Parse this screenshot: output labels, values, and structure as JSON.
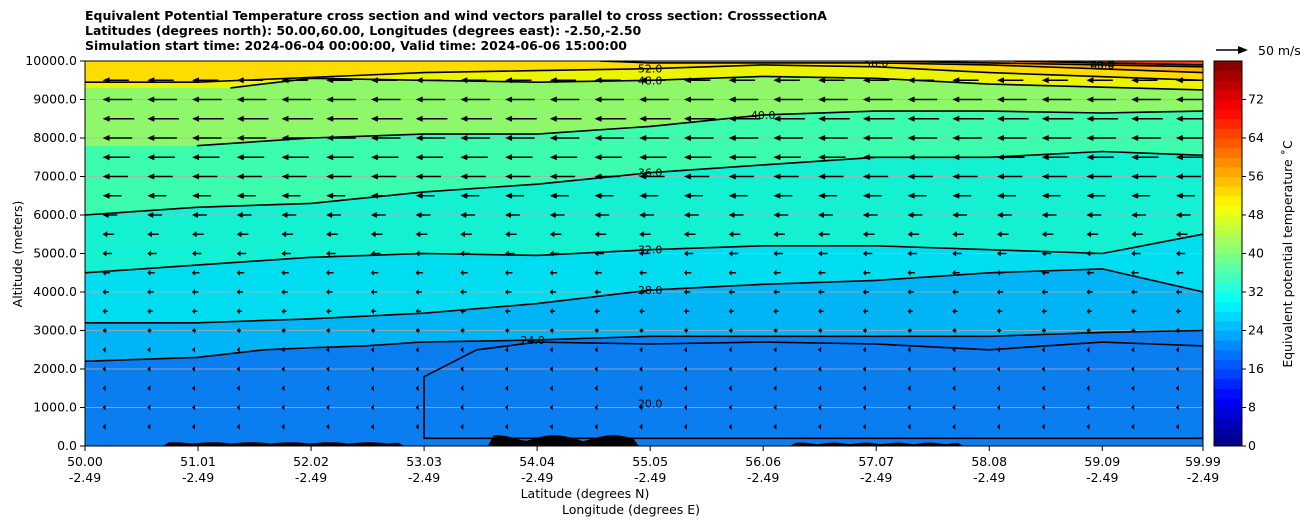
{
  "title_lines": [
    "Equivalent Potential Temperature cross section and wind vectors parallel to cross section: CrosssectionA",
    "Latitudes (degrees north): 50.00,60.00, Longitudes (degrees east): -2.50,-2.50",
    "Simulation start time: 2024-06-04 00:00:00, Valid time: 2024-06-06 15:00:00"
  ],
  "chart_data": {
    "type": "contour",
    "title": "Equivalent Potential Temperature cross section and wind vectors parallel to cross section: CrosssectionA",
    "ylabel": "Altitude (meters)",
    "xlabel_lines": [
      "Latitude (degrees N)",
      "Longitude (degrees E)"
    ],
    "ylim": [
      0,
      10000
    ],
    "y_ticks": [
      "0.0",
      "1000.0",
      "2000.0",
      "3000.0",
      "4000.0",
      "5000.0",
      "6000.0",
      "7000.0",
      "8000.0",
      "9000.0",
      "10000.0"
    ],
    "x_ticks": [
      {
        "lat": "50.00",
        "lon": "-2.49"
      },
      {
        "lat": "51.01",
        "lon": "-2.49"
      },
      {
        "lat": "52.02",
        "lon": "-2.49"
      },
      {
        "lat": "53.03",
        "lon": "-2.49"
      },
      {
        "lat": "54.04",
        "lon": "-2.49"
      },
      {
        "lat": "55.05",
        "lon": "-2.49"
      },
      {
        "lat": "56.06",
        "lon": "-2.49"
      },
      {
        "lat": "57.07",
        "lon": "-2.49"
      },
      {
        "lat": "58.08",
        "lon": "-2.49"
      },
      {
        "lat": "59.09",
        "lon": "-2.49"
      },
      {
        "lat": "59.99",
        "lon": "-2.49"
      }
    ],
    "colorbar": {
      "label": "Equivalent potential temperature $^\\circ$C",
      "label_display": "Equivalent potential temperature ˚C",
      "range": [
        0,
        80
      ],
      "ticks": [
        "0",
        "8",
        "16",
        "24",
        "32",
        "40",
        "48",
        "56",
        "64",
        "72"
      ],
      "colormap": "jet"
    },
    "quiver_key": {
      "label": "50 m/s",
      "value": 50
    },
    "contour_lines": [
      {
        "level": 24.0,
        "label": "24.0",
        "points": [
          [
            50.0,
            2200
          ],
          [
            51.0,
            2300
          ],
          [
            51.6,
            2500
          ],
          [
            52.0,
            2550
          ],
          [
            52.5,
            2600
          ],
          [
            53.0,
            2700
          ],
          [
            54.0,
            2750
          ],
          [
            55.05,
            2850
          ],
          [
            56.06,
            2850
          ],
          [
            57.07,
            2850
          ],
          [
            58.08,
            2850
          ],
          [
            59.09,
            2950
          ],
          [
            59.99,
            3000
          ]
        ]
      },
      {
        "level": 28.0,
        "label": "28.0",
        "points": [
          [
            50.0,
            3200
          ],
          [
            51.0,
            3200
          ],
          [
            52.0,
            3300
          ],
          [
            53.03,
            3450
          ],
          [
            54.04,
            3700
          ],
          [
            55.05,
            4050
          ],
          [
            56.06,
            4200
          ],
          [
            57.07,
            4300
          ],
          [
            58.08,
            4500
          ],
          [
            59.09,
            4600
          ],
          [
            59.99,
            4000
          ]
        ]
      },
      {
        "level": 32.0,
        "label": "32.0",
        "points": [
          [
            50.0,
            4500
          ],
          [
            51.0,
            4700
          ],
          [
            52.0,
            4900
          ],
          [
            53.03,
            5000
          ],
          [
            54.04,
            4950
          ],
          [
            55.05,
            5100
          ],
          [
            56.06,
            5200
          ],
          [
            57.07,
            5200
          ],
          [
            58.08,
            5100
          ],
          [
            59.09,
            5000
          ],
          [
            59.99,
            5500
          ]
        ]
      },
      {
        "level": 36.0,
        "label": "36.0",
        "points": [
          [
            50.0,
            6000
          ],
          [
            51.0,
            6200
          ],
          [
            52.02,
            6300
          ],
          [
            53.03,
            6600
          ],
          [
            54.04,
            6800
          ],
          [
            55.05,
            7100
          ],
          [
            56.06,
            7300
          ],
          [
            57.07,
            7500
          ],
          [
            58.08,
            7500
          ],
          [
            59.09,
            7650
          ],
          [
            59.99,
            7550
          ]
        ]
      },
      {
        "level": 40.0,
        "label": "40.0",
        "points": [
          [
            51.0,
            7800
          ],
          [
            52.02,
            8000
          ],
          [
            53.03,
            8100
          ],
          [
            54.04,
            8100
          ],
          [
            55.05,
            8300
          ],
          [
            56.06,
            8600
          ],
          [
            57.07,
            8700
          ],
          [
            58.08,
            8700
          ],
          [
            59.09,
            8650
          ],
          [
            59.99,
            8700
          ]
        ]
      },
      {
        "level": 48.0,
        "label": "48.0",
        "points": [
          [
            51.3,
            9300
          ],
          [
            52.02,
            9550
          ],
          [
            53.03,
            9500
          ],
          [
            54.04,
            9450
          ],
          [
            55.05,
            9500
          ],
          [
            56.06,
            9600
          ],
          [
            57.07,
            9550
          ],
          [
            58.08,
            9400
          ],
          [
            59.99,
            9250
          ]
        ]
      },
      {
        "level": 52.0,
        "label": "52.0",
        "points": [
          [
            50.0,
            9450
          ],
          [
            51.0,
            9450
          ],
          [
            53.03,
            9700
          ],
          [
            54.04,
            9750
          ],
          [
            55.05,
            9800
          ],
          [
            56.06,
            9900
          ],
          [
            57.07,
            9850
          ],
          [
            58.08,
            9700
          ],
          [
            59.99,
            9500
          ]
        ]
      },
      {
        "level": 56.0,
        "label": "56.0",
        "points": [
          [
            54.6,
            10000
          ],
          [
            55.05,
            9950
          ],
          [
            56.06,
            9950
          ],
          [
            57.07,
            9950
          ],
          [
            58.08,
            9900
          ],
          [
            59.99,
            9700
          ]
        ]
      },
      {
        "level": 60.0,
        "label": "60.0",
        "points": [
          [
            57.07,
            10000
          ],
          [
            58.08,
            9950
          ],
          [
            59.09,
            9900
          ],
          [
            59.99,
            9850
          ]
        ]
      },
      {
        "level": 64.0,
        "label": "64.0",
        "points": [
          [
            58.3,
            10000
          ],
          [
            59.09,
            9950
          ],
          [
            59.99,
            9900
          ]
        ]
      }
    ],
    "fill_bands": [
      {
        "level": 20.0,
        "color": "#0a7df0"
      },
      {
        "level": 24.0,
        "color": "#00b4f5"
      },
      {
        "level": 28.0,
        "color": "#00dcf0"
      },
      {
        "level": 32.0,
        "color": "#14f0d2"
      },
      {
        "level": 36.0,
        "color": "#3cfcae"
      },
      {
        "level": 40.0,
        "color": "#8ef86a"
      },
      {
        "level": 44.0,
        "color": "#c4f826"
      },
      {
        "level": 48.0,
        "color": "#ecf400"
      },
      {
        "level": 52.0,
        "color": "#ffdc00"
      },
      {
        "level": 56.0,
        "color": "#ffb000"
      },
      {
        "level": 60.0,
        "color": "#ff7c00"
      },
      {
        "level": 64.0,
        "color": "#ff3c00"
      },
      {
        "level": 68.0,
        "color": "#dc0000"
      }
    ],
    "low_regions": [
      {
        "level": 20.0,
        "label": "20.0",
        "points": [
          [
            53.03,
            1800
          ],
          [
            53.5,
            2500
          ],
          [
            54.04,
            2700
          ],
          [
            55.05,
            2650
          ],
          [
            56.06,
            2700
          ],
          [
            57.07,
            2650
          ],
          [
            58.08,
            2500
          ],
          [
            59.09,
            2700
          ],
          [
            59.99,
            2600
          ],
          [
            59.99,
            200
          ],
          [
            53.03,
            200
          ]
        ]
      }
    ],
    "wind_rows": [
      {
        "altitude": 9500,
        "speed": 25
      },
      {
        "altitude": 9000,
        "speed": 28
      },
      {
        "altitude": 8500,
        "speed": 30
      },
      {
        "altitude": 8000,
        "speed": 28
      },
      {
        "altitude": 7500,
        "speed": 26
      },
      {
        "altitude": 7000,
        "speed": 24
      },
      {
        "altitude": 6500,
        "speed": 18
      },
      {
        "altitude": 6000,
        "speed": 14
      },
      {
        "altitude": 5500,
        "speed": 11
      },
      {
        "altitude": 5000,
        "speed": 9
      },
      {
        "altitude": 4500,
        "speed": 7
      },
      {
        "altitude": 4000,
        "speed": 6
      },
      {
        "altitude": 3500,
        "speed": 5
      },
      {
        "altitude": 3000,
        "speed": 4
      },
      {
        "altitude": 2500,
        "speed": 3
      },
      {
        "altitude": 2000,
        "speed": 3
      },
      {
        "altitude": 1500,
        "speed": 3
      },
      {
        "altitude": 1000,
        "speed": 3
      },
      {
        "altitude": 500,
        "speed": 2
      }
    ],
    "wind_direction": "toward-south",
    "grid": {
      "horizontal": true,
      "vertical": false
    },
    "terrain": "black-filled-ground-profile"
  }
}
